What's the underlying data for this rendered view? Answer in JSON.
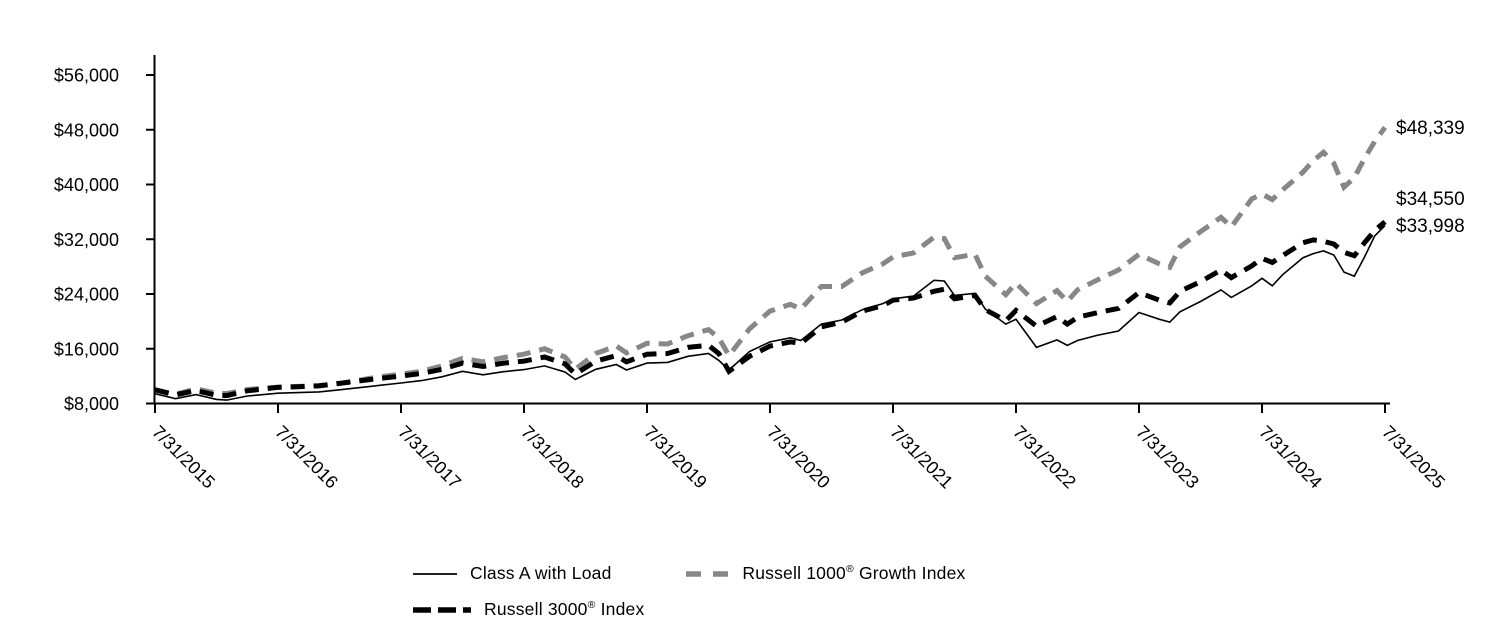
{
  "chart_data": {
    "type": "line",
    "x_axis": {
      "tick_labels": [
        "7/31/2015",
        "7/31/2016",
        "7/31/2017",
        "7/31/2018",
        "7/31/2019",
        "7/31/2020",
        "7/31/2021",
        "7/31/2022",
        "7/31/2023",
        "7/31/2024",
        "7/31/2025"
      ],
      "start": "7/31/2015",
      "end": "7/31/2025",
      "total_months": 120
    },
    "y_axis": {
      "tick_labels": [
        "$8,000",
        "$16,000",
        "$24,000",
        "$32,000",
        "$40,000",
        "$48,000",
        "$56,000"
      ],
      "tick_values": [
        8000,
        16000,
        24000,
        32000,
        40000,
        48000,
        56000
      ],
      "ylim": [
        8000,
        57500
      ]
    },
    "grid": false,
    "legend_position": "bottom",
    "sample_month_offsets": [
      0,
      2,
      4,
      6,
      7,
      9,
      12,
      14,
      16,
      18,
      21,
      24,
      26,
      28,
      30,
      32,
      34,
      36,
      38,
      40,
      41,
      43,
      45,
      46,
      48,
      50,
      52,
      54,
      55,
      56,
      58,
      60,
      62,
      63,
      65,
      67,
      69,
      71,
      72,
      74,
      76,
      77,
      78,
      80,
      81,
      83,
      84,
      86,
      88,
      89,
      90,
      92,
      94,
      96,
      98,
      99,
      100,
      102,
      104,
      105,
      107,
      108,
      109,
      110,
      112,
      113,
      114,
      115,
      116,
      117,
      118,
      119,
      120
    ],
    "series": [
      {
        "name": "Class A with Load",
        "line_style": "solid",
        "color": "#000000",
        "end_label": "$33,998",
        "final_value": 33998,
        "values": [
          9425,
          8700,
          9300,
          8600,
          8500,
          9100,
          9500,
          9600,
          9700,
          10000,
          10500,
          11000,
          11350,
          11900,
          12700,
          12200,
          12650,
          12950,
          13500,
          12600,
          11500,
          13000,
          13700,
          12900,
          13900,
          14000,
          14900,
          15300,
          14300,
          12900,
          15600,
          17000,
          17600,
          17200,
          19600,
          20200,
          21700,
          22600,
          23300,
          23700,
          26000,
          25900,
          23800,
          24100,
          21800,
          19600,
          20300,
          16200,
          17300,
          16500,
          17200,
          18000,
          18600,
          21300,
          20300,
          19900,
          21400,
          22900,
          24600,
          23500,
          25200,
          26300,
          25200,
          26800,
          29300,
          29900,
          30300,
          29700,
          27200,
          26600,
          29400,
          32500,
          33998
        ]
      },
      {
        "name": "Russell 1000® Growth Index",
        "line_style": "dashed",
        "color": "#878787",
        "end_label": "$48,339",
        "final_value": 48339,
        "values": [
          10000,
          9350,
          10150,
          9500,
          9450,
          10050,
          10400,
          10500,
          10550,
          10900,
          11700,
          12300,
          12700,
          13500,
          14600,
          14100,
          14700,
          15200,
          16000,
          14800,
          13000,
          15300,
          16400,
          15400,
          16800,
          16700,
          17900,
          18800,
          17600,
          15000,
          18900,
          21500,
          22500,
          21800,
          25100,
          25100,
          27100,
          28400,
          29400,
          30000,
          32300,
          32100,
          29300,
          29800,
          26600,
          23900,
          25600,
          22600,
          24500,
          22900,
          24600,
          26100,
          27500,
          29800,
          28400,
          27900,
          30900,
          33100,
          35200,
          33800,
          37900,
          38600,
          37800,
          39200,
          41800,
          43500,
          44700,
          43100,
          39600,
          41000,
          43800,
          46300,
          48339
        ]
      },
      {
        "name": "Russell 3000® Index",
        "line_style": "dashed",
        "color": "#000000",
        "end_label": "$34,550",
        "final_value": 34550,
        "values": [
          10000,
          9250,
          9900,
          9200,
          9150,
          9850,
          10350,
          10450,
          10600,
          10950,
          11500,
          12000,
          12400,
          13000,
          13900,
          13400,
          13900,
          14200,
          14800,
          13800,
          12300,
          14200,
          15000,
          14100,
          15200,
          15300,
          16200,
          16500,
          15300,
          12700,
          14900,
          16400,
          17000,
          16800,
          19200,
          19900,
          21500,
          22300,
          23100,
          23400,
          24400,
          24700,
          23300,
          23800,
          21700,
          20100,
          21600,
          19300,
          20700,
          19600,
          20600,
          21300,
          21900,
          24200,
          23100,
          22700,
          24400,
          25800,
          27500,
          26400,
          28100,
          29200,
          28600,
          29600,
          31500,
          31900,
          31700,
          31300,
          30100,
          29600,
          31500,
          33300,
          34550
        ]
      }
    ]
  }
}
